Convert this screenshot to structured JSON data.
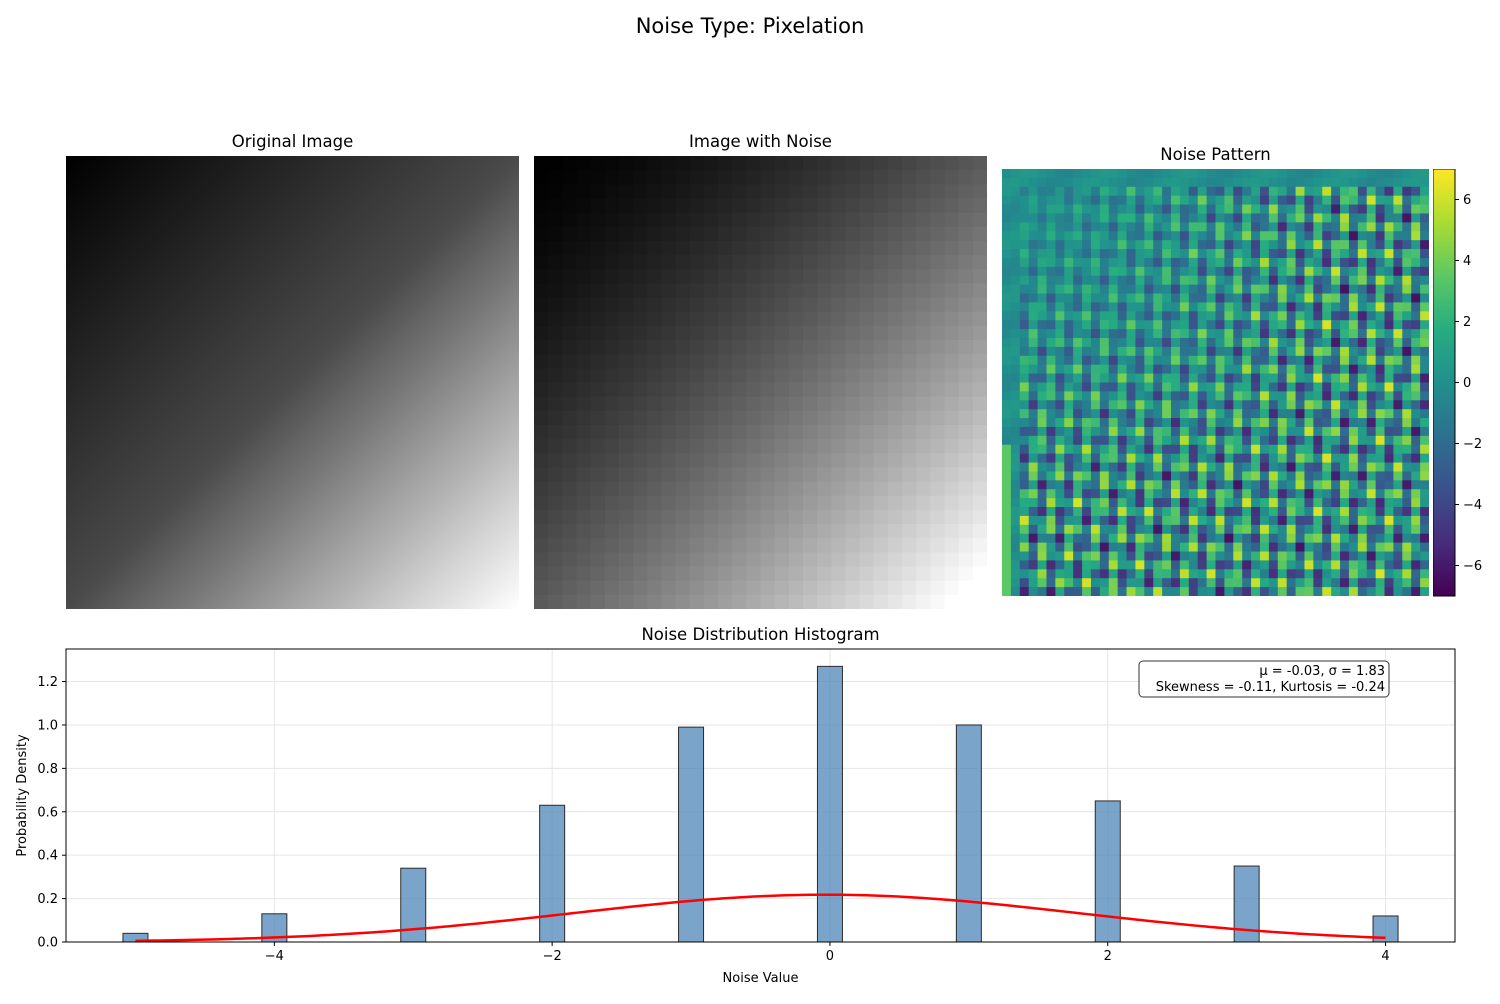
{
  "figure": {
    "suptitle": "Noise Type: Pixelation"
  },
  "panels": {
    "original": {
      "title": "Original Image"
    },
    "noisy": {
      "title": "Image with Noise"
    },
    "pattern": {
      "title": "Noise Pattern",
      "colorbar_ticks": [
        "6",
        "4",
        "2",
        "0",
        "−2",
        "−4",
        "−6"
      ],
      "colormap": "viridis",
      "colorbar_range": [
        -7,
        7
      ]
    }
  },
  "chart_data": {
    "type": "bar",
    "title": "Noise Distribution Histogram",
    "xlabel": "Noise Value",
    "ylabel": "Probability Density",
    "xlim": [
      -5.5,
      4.5
    ],
    "ylim": [
      0,
      1.35
    ],
    "x_ticks": [
      -4,
      -2,
      0,
      2,
      4
    ],
    "x_tick_labels": [
      "−4",
      "−2",
      "0",
      "2",
      "4"
    ],
    "y_ticks": [
      0.0,
      0.2,
      0.4,
      0.6,
      0.8,
      1.0,
      1.2
    ],
    "y_tick_labels": [
      "0.0",
      "0.2",
      "0.4",
      "0.6",
      "0.8",
      "1.0",
      "1.2"
    ],
    "grid": true,
    "bar_color": "#4f86b8",
    "bar_edge_color": "#2b2b2b",
    "bars": [
      {
        "x": -5,
        "value": 0.04
      },
      {
        "x": -4,
        "value": 0.13
      },
      {
        "x": -3,
        "value": 0.34
      },
      {
        "x": -2,
        "value": 0.63
      },
      {
        "x": -1,
        "value": 0.99
      },
      {
        "x": 0,
        "value": 1.27
      },
      {
        "x": 1,
        "value": 1.0
      },
      {
        "x": 2,
        "value": 0.65
      },
      {
        "x": 3,
        "value": 0.35
      },
      {
        "x": 4,
        "value": 0.12
      }
    ],
    "bin_width": 0.18,
    "fit_curve": {
      "type": "normal",
      "mean": -0.03,
      "std": 1.83,
      "color": "#ff0000",
      "x_range": [
        -5,
        4
      ]
    },
    "stats_box": {
      "line1": "μ = -0.03, σ = 1.83",
      "line2": "Skewness = -0.11, Kurtosis = -0.24"
    }
  }
}
